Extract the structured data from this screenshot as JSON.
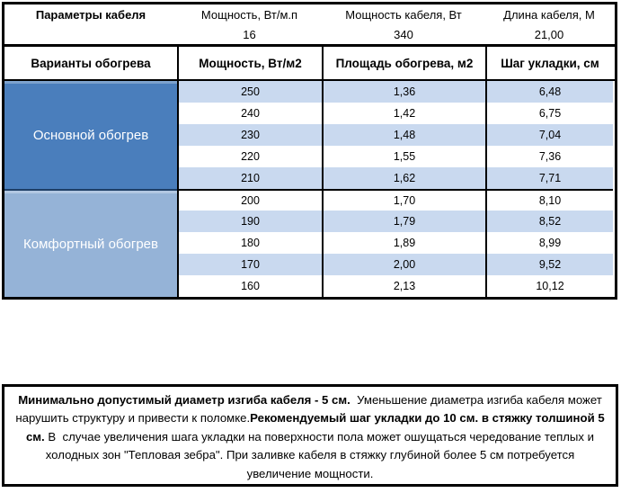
{
  "params": {
    "title": "Параметры кабеля",
    "columns": [
      {
        "label": "Мощность, Вт/м.п",
        "value": "16"
      },
      {
        "label": "Мощность кабеля, Вт",
        "value": "340"
      },
      {
        "label": "Длина кабеля, М",
        "value": "21,00"
      }
    ]
  },
  "heating_table": {
    "row_header": "Варианты обогрева",
    "columns": [
      "Мощность, Вт/м2",
      "Площадь обогрева, м2",
      "Шаг укладки, см"
    ],
    "sections": [
      {
        "label": "Основной обогрев",
        "rows": [
          [
            "250",
            "1,36",
            "6,48"
          ],
          [
            "240",
            "1,42",
            "6,75"
          ],
          [
            "230",
            "1,48",
            "7,04"
          ],
          [
            "220",
            "1,55",
            "7,36"
          ],
          [
            "210",
            "1,62",
            "7,71"
          ]
        ]
      },
      {
        "label": "Комфортный обогрев",
        "rows": [
          [
            "200",
            "1,70",
            "8,10"
          ],
          [
            "190",
            "1,79",
            "8,52"
          ],
          [
            "180",
            "1,89",
            "8,99"
          ],
          [
            "170",
            "2,00",
            "9,52"
          ],
          [
            "160",
            "2,13",
            "10,12"
          ]
        ]
      }
    ]
  },
  "note": {
    "bold_1": "Минимально допустимый диаметр изгиба кабеля - 5 см.",
    "text_1": "  Уменьшение диаметра изгиба кабеля может нарушить структуру и привести к поломке.",
    "bold_2": "Рекомендуемый шаг укладки до 10 см. в стяжку толшиной 5 см.",
    "text_2": " В  случае увеличения шага укладки на поверхности пола может ошущаться чередование теплых и холодных зон \"Тепловая зебра\". При заливке кабеля в стяжку глубиной более 5 см потребуется увеличение мощности."
  },
  "colors": {
    "main_heating_bg": "#4a7ebc",
    "comfort_heating_bg": "#95b3d7",
    "band_row_bg": "#c9d9ef",
    "border": "#000000"
  }
}
